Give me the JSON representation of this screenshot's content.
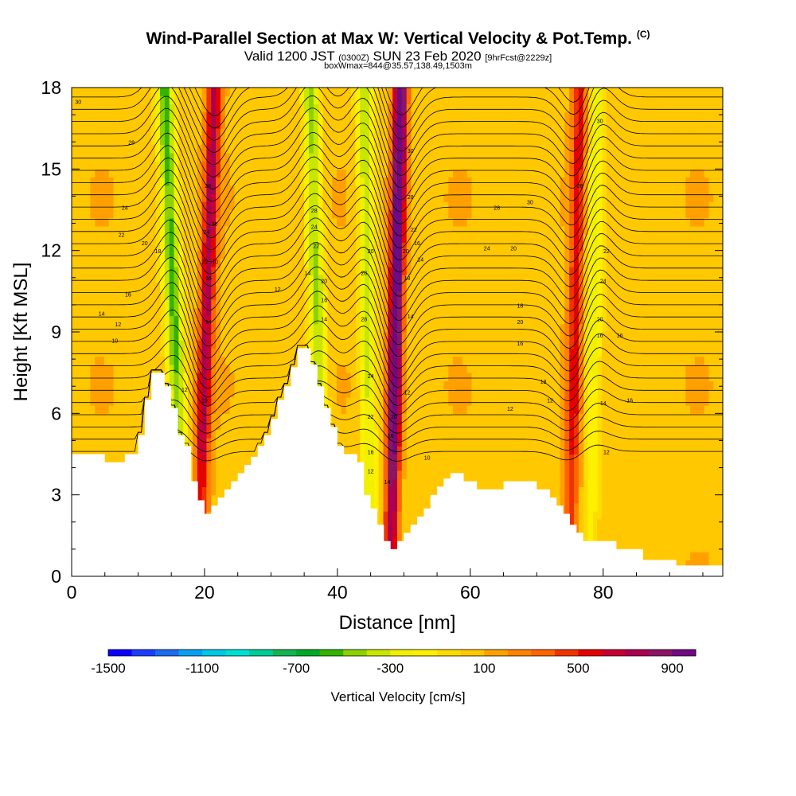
{
  "header": {
    "title": "Wind-Parallel Section at Max W: Vertical Velocity & Pot.Temp.",
    "title_suffix": "(C)",
    "valid_prefix": "Valid 1200 JST",
    "valid_utc": "(0300Z)",
    "valid_date": "SUN 23 Feb 2020",
    "forecast": "[9hrFcst@2229z]",
    "box_info": "boxWmax=844@35.57,138.49,1503m"
  },
  "chart_data": {
    "type": "heatmap",
    "xlabel": "Distance [nm]",
    "ylabel": "Height [Kft MSL]",
    "xlim": [
      0,
      98
    ],
    "ylim": [
      0,
      18
    ],
    "x_ticks": [
      "0",
      "20",
      "40",
      "60",
      "80"
    ],
    "y_ticks": [
      "0",
      "3",
      "6",
      "9",
      "12",
      "15",
      "18"
    ],
    "colorbar": {
      "label": "Vertical Velocity [cm/s]",
      "tick_labels": [
        "-1500",
        "-1100",
        "-700",
        "-300",
        "100",
        "500",
        "900"
      ],
      "colors": [
        "#0a00ff",
        "#1a3dff",
        "#1a6cf0",
        "#0aa0f0",
        "#00c8e6",
        "#00e0d2",
        "#00cc96",
        "#14b450",
        "#00aa28",
        "#32b400",
        "#8cd200",
        "#c8e600",
        "#f0f000",
        "#fff000",
        "#ffdc00",
        "#ffc800",
        "#ffa000",
        "#ff8200",
        "#ff6400",
        "#f03200",
        "#e60000",
        "#c80032",
        "#aa0050",
        "#8c1464",
        "#6e0a82"
      ]
    },
    "terrain": [
      [
        0,
        4.5
      ],
      [
        5,
        4.5
      ],
      [
        5,
        4.2
      ],
      [
        8,
        4.2
      ],
      [
        8,
        4.5
      ],
      [
        10,
        4.5
      ],
      [
        10,
        5.2
      ],
      [
        11,
        5.2
      ],
      [
        11,
        6.5
      ],
      [
        12,
        6.5
      ],
      [
        12,
        7.5
      ],
      [
        14,
        7.5
      ],
      [
        14,
        7.0
      ],
      [
        15,
        7.0
      ],
      [
        15,
        6.2
      ],
      [
        16,
        6.2
      ],
      [
        16,
        5.2
      ],
      [
        17,
        5.2
      ],
      [
        17,
        4.8
      ],
      [
        18,
        4.8
      ],
      [
        18,
        3.5
      ],
      [
        19,
        3.5
      ],
      [
        19,
        2.8
      ],
      [
        20,
        2.8
      ],
      [
        20,
        2.3
      ],
      [
        21,
        2.3
      ],
      [
        21,
        2.6
      ],
      [
        22,
        2.6
      ],
      [
        22,
        2.9
      ],
      [
        23,
        2.9
      ],
      [
        23,
        3.2
      ],
      [
        24,
        3.2
      ],
      [
        24,
        3.5
      ],
      [
        25,
        3.5
      ],
      [
        25,
        3.8
      ],
      [
        26,
        3.8
      ],
      [
        26,
        4.1
      ],
      [
        27,
        4.1
      ],
      [
        27,
        4.4
      ],
      [
        28,
        4.4
      ],
      [
        28,
        4.8
      ],
      [
        29,
        4.8
      ],
      [
        29,
        5.2
      ],
      [
        30,
        5.2
      ],
      [
        30,
        5.8
      ],
      [
        31,
        5.8
      ],
      [
        31,
        6.5
      ],
      [
        32,
        6.5
      ],
      [
        32,
        7.0
      ],
      [
        33,
        7.0
      ],
      [
        33,
        7.7
      ],
      [
        34,
        7.7
      ],
      [
        34,
        8.4
      ],
      [
        36,
        8.4
      ],
      [
        36,
        7.8
      ],
      [
        37,
        7.8
      ],
      [
        37,
        7.0
      ],
      [
        38,
        7.0
      ],
      [
        38,
        6.2
      ],
      [
        39,
        6.2
      ],
      [
        39,
        5.5
      ],
      [
        40,
        5.5
      ],
      [
        40,
        4.8
      ],
      [
        41,
        4.8
      ],
      [
        41,
        4.5
      ],
      [
        43,
        4.5
      ],
      [
        43,
        4.2
      ],
      [
        44,
        4.2
      ],
      [
        44,
        3.0
      ],
      [
        45,
        3.0
      ],
      [
        45,
        2.5
      ],
      [
        46,
        2.5
      ],
      [
        46,
        1.9
      ],
      [
        47,
        1.9
      ],
      [
        47,
        1.3
      ],
      [
        48,
        1.3
      ],
      [
        48,
        1.0
      ],
      [
        49,
        1.0
      ],
      [
        49,
        1.3
      ],
      [
        50,
        1.3
      ],
      [
        50,
        1.6
      ],
      [
        51,
        1.6
      ],
      [
        51,
        1.9
      ],
      [
        52,
        1.9
      ],
      [
        52,
        2.2
      ],
      [
        53,
        2.2
      ],
      [
        53,
        2.5
      ],
      [
        54,
        2.5
      ],
      [
        54,
        3.0
      ],
      [
        55,
        3.0
      ],
      [
        55,
        3.3
      ],
      [
        56,
        3.3
      ],
      [
        56,
        3.6
      ],
      [
        57,
        3.6
      ],
      [
        57,
        3.8
      ],
      [
        59,
        3.8
      ],
      [
        59,
        3.5
      ],
      [
        61,
        3.5
      ],
      [
        61,
        3.2
      ],
      [
        65,
        3.2
      ],
      [
        65,
        3.5
      ],
      [
        70,
        3.5
      ],
      [
        70,
        3.2
      ],
      [
        72,
        3.2
      ],
      [
        72,
        2.9
      ],
      [
        73,
        2.9
      ],
      [
        73,
        2.6
      ],
      [
        74,
        2.6
      ],
      [
        74,
        2.3
      ],
      [
        75,
        2.3
      ],
      [
        75,
        1.9
      ],
      [
        76,
        1.9
      ],
      [
        76,
        1.6
      ],
      [
        77,
        1.6
      ],
      [
        77,
        1.3
      ],
      [
        82,
        1.3
      ],
      [
        82,
        1.0
      ],
      [
        86,
        1.0
      ],
      [
        86,
        0.6
      ],
      [
        91,
        0.6
      ],
      [
        91,
        0.4
      ],
      [
        98,
        0.4
      ]
    ],
    "updrafts": [
      {
        "x_base": 19,
        "x_top": 21.5,
        "w": 700
      },
      {
        "x_base": 48,
        "x_top": 49.5,
        "w": 1100
      },
      {
        "x_base": 75,
        "x_top": 76.5,
        "w": 500
      }
    ],
    "downdrafts": [
      {
        "x_base": 17,
        "x_top": 14,
        "w": -600
      },
      {
        "x_base": 38,
        "x_top": 36,
        "w": -500
      },
      {
        "x_base": 45,
        "x_top": 44,
        "w": -450
      },
      {
        "x_base": 78,
        "x_top": 79,
        "w": -350
      }
    ],
    "contour_labels": [
      {
        "text": "30",
        "x": 1,
        "y": 17.4
      },
      {
        "text": "28",
        "x": 9,
        "y": 15.9
      },
      {
        "text": "24",
        "x": 8,
        "y": 13.5
      },
      {
        "text": "22",
        "x": 7.5,
        "y": 12.5
      },
      {
        "text": "20",
        "x": 11,
        "y": 12.2
      },
      {
        "text": "18",
        "x": 13,
        "y": 11.9
      },
      {
        "text": "16",
        "x": 8.5,
        "y": 10.3
      },
      {
        "text": "14",
        "x": 4.5,
        "y": 9.6
      },
      {
        "text": "12",
        "x": 7,
        "y": 9.2
      },
      {
        "text": "10",
        "x": 6.5,
        "y": 8.6
      },
      {
        "text": "12",
        "x": 17,
        "y": 6.8
      },
      {
        "text": "10",
        "x": 20,
        "y": 6.4
      },
      {
        "text": "28",
        "x": 20.5,
        "y": 14.3
      },
      {
        "text": "24",
        "x": 20.3,
        "y": 12.6
      },
      {
        "text": "20",
        "x": 21.5,
        "y": 12.9
      },
      {
        "text": "20",
        "x": 20,
        "y": 11.5
      },
      {
        "text": "16",
        "x": 20.6,
        "y": 10.9
      },
      {
        "text": "10",
        "x": 21.6,
        "y": 11.5
      },
      {
        "text": "14",
        "x": 20.6,
        "y": 9.3
      },
      {
        "text": "28",
        "x": 36.5,
        "y": 13.4
      },
      {
        "text": "24",
        "x": 36.5,
        "y": 12.8
      },
      {
        "text": "22",
        "x": 36.8,
        "y": 12.1
      },
      {
        "text": "14",
        "x": 35.5,
        "y": 11.1
      },
      {
        "text": "12",
        "x": 31,
        "y": 10.5
      },
      {
        "text": "20",
        "x": 38,
        "y": 10.8
      },
      {
        "text": "16",
        "x": 38,
        "y": 10.1
      },
      {
        "text": "14",
        "x": 38,
        "y": 9.4
      },
      {
        "text": "28",
        "x": 44,
        "y": 11.1
      },
      {
        "text": "20",
        "x": 45,
        "y": 11.9
      },
      {
        "text": "28",
        "x": 44,
        "y": 9.4
      },
      {
        "text": "24",
        "x": 45,
        "y": 7.3
      },
      {
        "text": "22",
        "x": 45,
        "y": 5.8
      },
      {
        "text": "20",
        "x": 48.5,
        "y": 5.8
      },
      {
        "text": "16",
        "x": 48,
        "y": 5.1
      },
      {
        "text": "16",
        "x": 45,
        "y": 4.5
      },
      {
        "text": "12",
        "x": 45,
        "y": 3.8
      },
      {
        "text": "14",
        "x": 47.5,
        "y": 3.4
      },
      {
        "text": "10",
        "x": 53.5,
        "y": 4.3
      },
      {
        "text": "12",
        "x": 50.5,
        "y": 6.7
      },
      {
        "text": "14",
        "x": 51,
        "y": 9.5
      },
      {
        "text": "18",
        "x": 50.5,
        "y": 10.9
      },
      {
        "text": "20",
        "x": 50.3,
        "y": 11.9
      },
      {
        "text": "22",
        "x": 51.5,
        "y": 12.7
      },
      {
        "text": "16",
        "x": 52,
        "y": 12.2
      },
      {
        "text": "14",
        "x": 52.5,
        "y": 11.6
      },
      {
        "text": "28",
        "x": 51,
        "y": 13.9
      },
      {
        "text": "30",
        "x": 51,
        "y": 15.6
      },
      {
        "text": "28",
        "x": 64,
        "y": 13.5
      },
      {
        "text": "30",
        "x": 69,
        "y": 13.7
      },
      {
        "text": "24",
        "x": 62.5,
        "y": 12.0
      },
      {
        "text": "20",
        "x": 66.5,
        "y": 12.0
      },
      {
        "text": "18",
        "x": 67.5,
        "y": 9.9
      },
      {
        "text": "20",
        "x": 67.5,
        "y": 9.3
      },
      {
        "text": "16",
        "x": 67.5,
        "y": 8.5
      },
      {
        "text": "18",
        "x": 71,
        "y": 7.1
      },
      {
        "text": "12",
        "x": 66,
        "y": 6.1
      },
      {
        "text": "12",
        "x": 72,
        "y": 6.4
      },
      {
        "text": "28",
        "x": 76.5,
        "y": 14.3
      },
      {
        "text": "30",
        "x": 79.5,
        "y": 16.7
      },
      {
        "text": "22",
        "x": 80.5,
        "y": 11.9
      },
      {
        "text": "24",
        "x": 80,
        "y": 10.8
      },
      {
        "text": "20",
        "x": 79.5,
        "y": 9.4
      },
      {
        "text": "16",
        "x": 79.5,
        "y": 8.8
      },
      {
        "text": "16",
        "x": 82.5,
        "y": 8.8
      },
      {
        "text": "14",
        "x": 80,
        "y": 6.3
      },
      {
        "text": "16",
        "x": 84,
        "y": 6.4
      },
      {
        "text": "12",
        "x": 80.5,
        "y": 4.5
      }
    ]
  }
}
